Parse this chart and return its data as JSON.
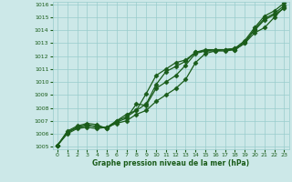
{
  "xlabel": "Graphe pression niveau de la mer (hPa)",
  "xlim": [
    -0.5,
    23.5
  ],
  "ylim": [
    1004.8,
    1016.2
  ],
  "yticks": [
    1005,
    1006,
    1007,
    1008,
    1009,
    1010,
    1011,
    1012,
    1013,
    1014,
    1015,
    1016
  ],
  "xticks": [
    0,
    1,
    2,
    3,
    4,
    5,
    6,
    7,
    8,
    9,
    10,
    11,
    12,
    13,
    14,
    15,
    16,
    17,
    18,
    19,
    20,
    21,
    22,
    23
  ],
  "bg_color": "#cce8e8",
  "grid_color": "#99cccc",
  "line_color": "#1a5c1a",
  "marker": "D",
  "marker_size": 2.5,
  "line_width": 0.9,
  "series": [
    [
      1005.1,
      1006.1,
      1006.5,
      1006.6,
      1006.6,
      1006.4,
      1007.0,
      1007.3,
      1007.8,
      1008.3,
      1009.8,
      1010.8,
      1011.2,
      1011.6,
      1012.3,
      1012.4,
      1012.5,
      1012.5,
      1012.6,
      1013.2,
      1014.2,
      1015.1,
      1015.5,
      1016.1
    ],
    [
      1005.1,
      1006.1,
      1006.5,
      1006.7,
      1006.5,
      1006.5,
      1007.0,
      1007.5,
      1007.8,
      1009.1,
      1010.5,
      1011.0,
      1011.5,
      1011.7,
      1012.3,
      1012.5,
      1012.5,
      1012.5,
      1012.5,
      1013.0,
      1013.8,
      1014.2,
      1015.0,
      1015.8
    ],
    [
      1005.1,
      1006.2,
      1006.6,
      1006.8,
      1006.7,
      1006.4,
      1006.9,
      1007.2,
      1008.3,
      1008.2,
      1009.5,
      1010.0,
      1010.5,
      1011.3,
      1012.2,
      1012.4,
      1012.4,
      1012.5,
      1012.6,
      1013.1,
      1014.0,
      1014.8,
      1015.2,
      1015.7
    ],
    [
      1005.1,
      1006.0,
      1006.4,
      1006.5,
      1006.4,
      1006.5,
      1006.8,
      1007.0,
      1007.5,
      1007.8,
      1008.5,
      1009.0,
      1009.5,
      1010.2,
      1011.5,
      1012.2,
      1012.4,
      1012.4,
      1012.5,
      1013.0,
      1014.1,
      1014.9,
      1015.3,
      1015.9
    ]
  ]
}
